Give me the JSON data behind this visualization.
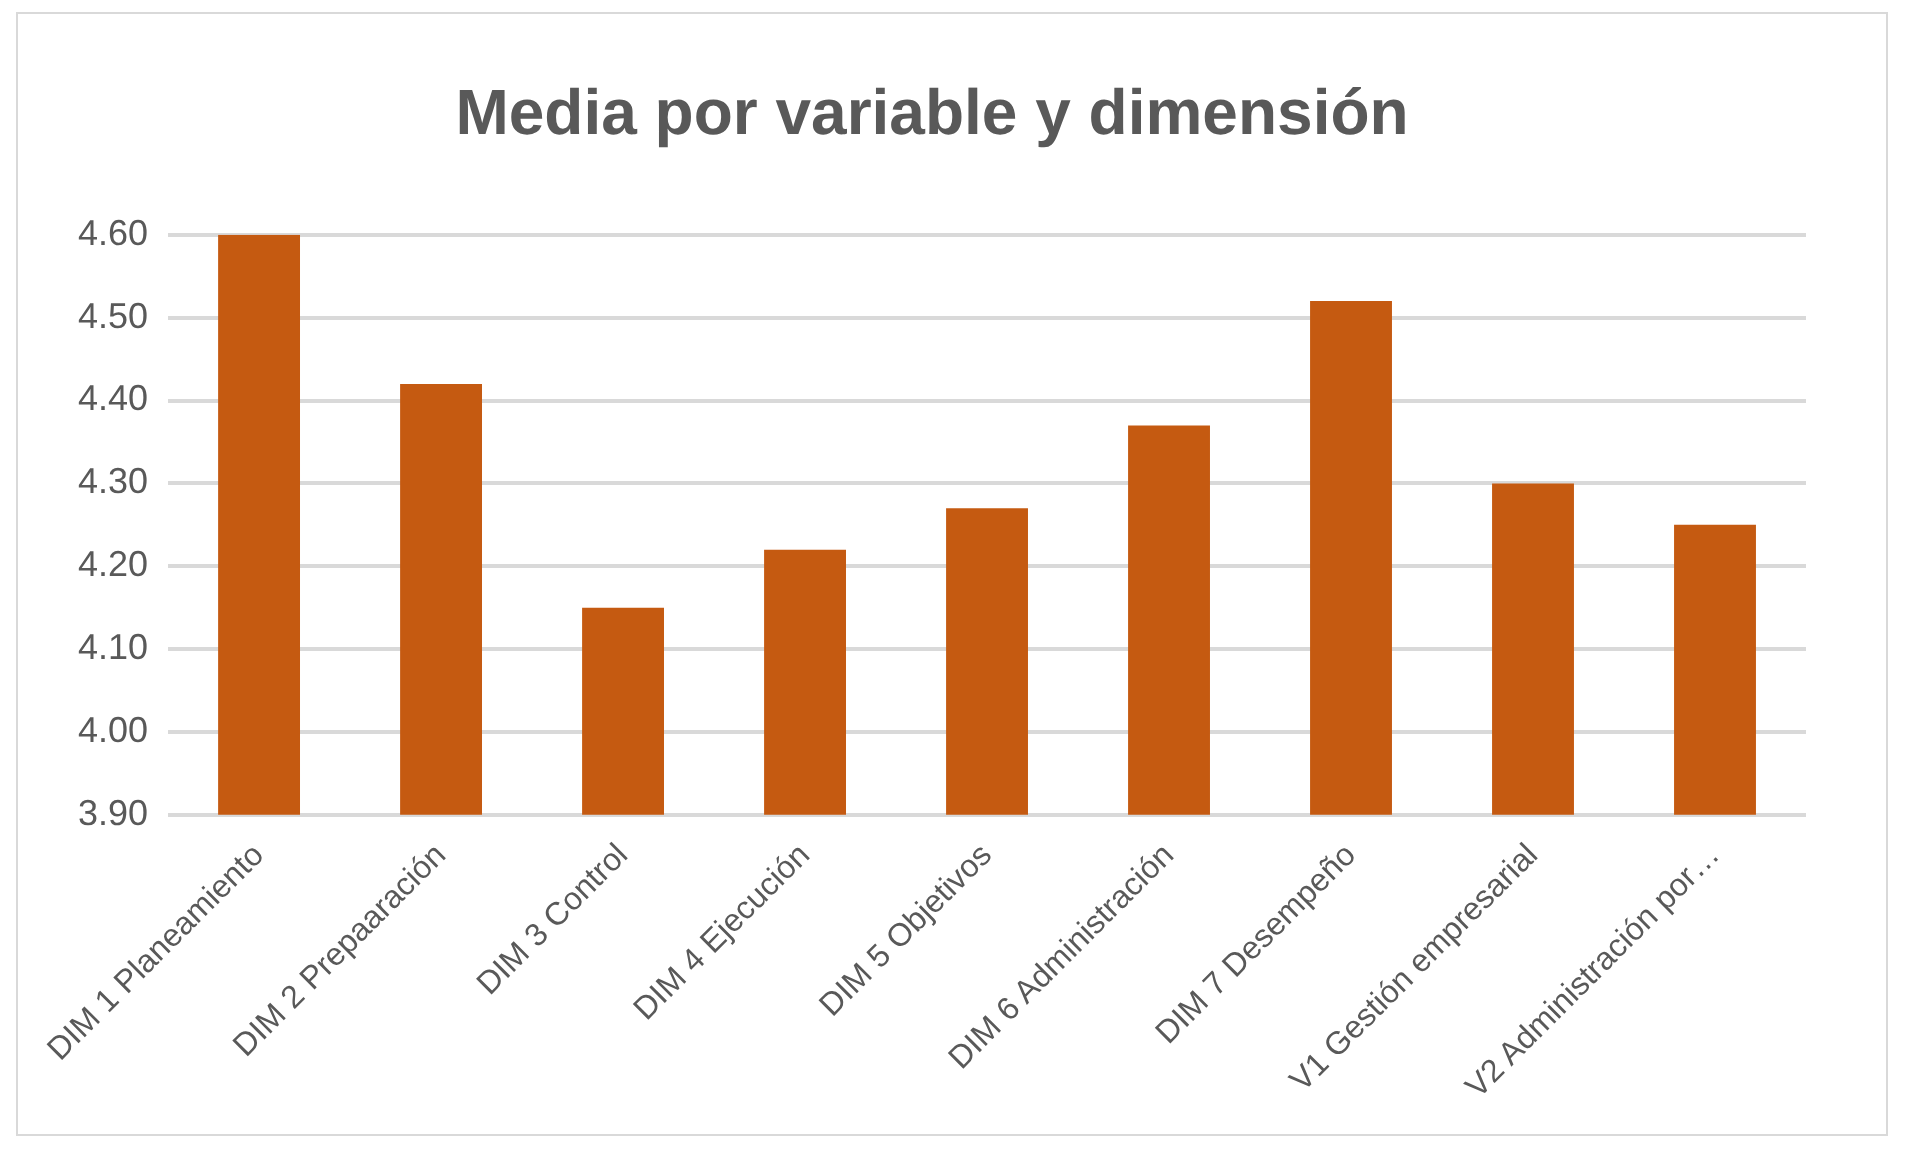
{
  "chart_data": {
    "type": "bar",
    "title": "Media por variable y dimensión",
    "categories": [
      "DIM 1 Planeamiento",
      "DIM 2 Prepaaración",
      "DIM 3 Control",
      "DIM 4 Ejecución",
      "DIM 5 Objetivos",
      "DIM 6 Administración",
      "DIM 7 Desempeño",
      "V1 Gestión empresarial",
      "V2 Administración por…"
    ],
    "values": [
      4.6,
      4.42,
      4.15,
      4.22,
      4.27,
      4.37,
      4.52,
      4.3,
      4.25
    ],
    "color": "#c55a11",
    "ylim": [
      3.9,
      4.6
    ],
    "yticks": [
      {
        "value": 3.9,
        "label": "3.90"
      },
      {
        "value": 4.0,
        "label": "4.00"
      },
      {
        "value": 4.1,
        "label": "4.10"
      },
      {
        "value": 4.2,
        "label": "4.20"
      },
      {
        "value": 4.3,
        "label": "4.30"
      },
      {
        "value": 4.4,
        "label": "4.40"
      },
      {
        "value": 4.5,
        "label": "4.50"
      },
      {
        "value": 4.6,
        "label": "4.60"
      }
    ],
    "grid": "y"
  }
}
